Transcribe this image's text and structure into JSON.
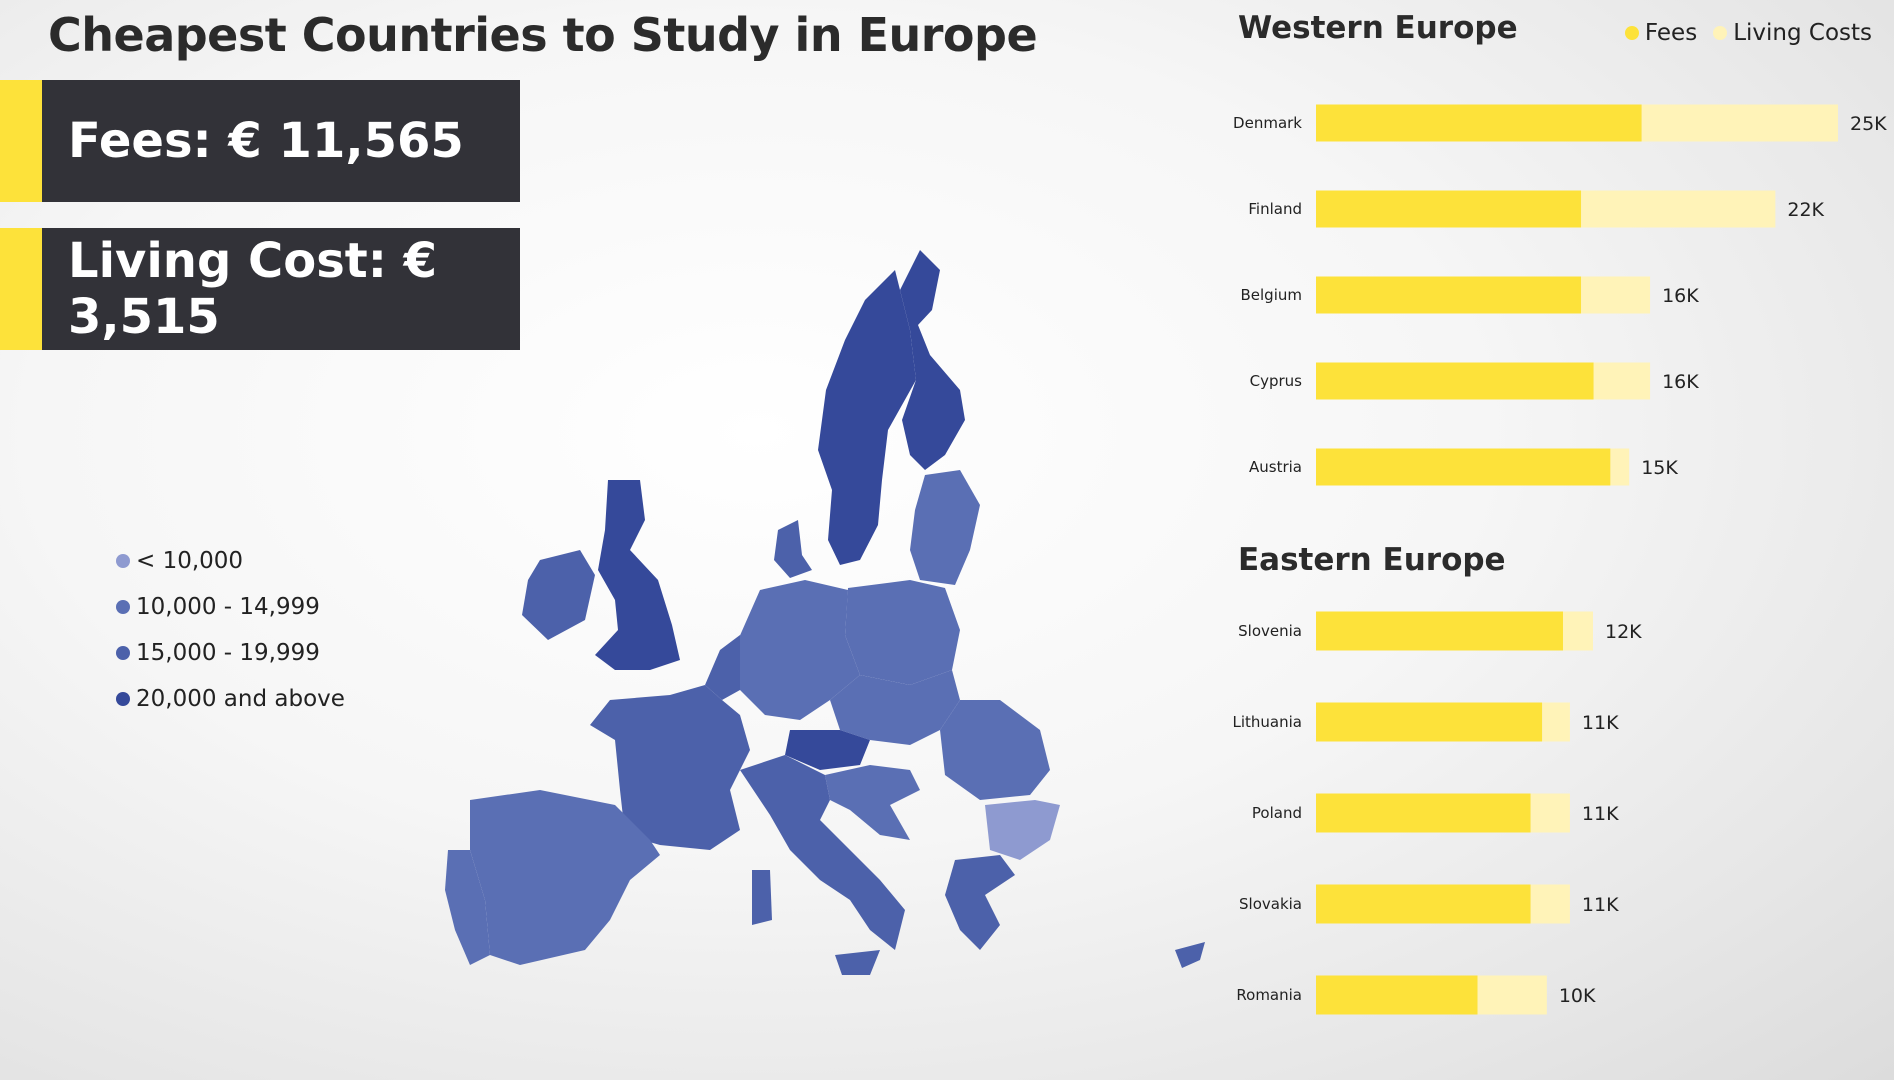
{
  "title": "Cheapest Countries to Study in Europe",
  "kpis": {
    "fees": "Fees: € 11,565",
    "living": "Living Cost: € 3,515"
  },
  "map_legend": [
    {
      "label": "< 10,000",
      "color": "#8e9ad0"
    },
    {
      "label": "10,000 - 14,999",
      "color": "#5a6fb4"
    },
    {
      "label": "15,000 - 19,999",
      "color": "#4c61aa"
    },
    {
      "label": "20,000 and above",
      "color": "#35499a"
    }
  ],
  "series_legend": {
    "fees": "Fees",
    "living": "Living Costs"
  },
  "colors": {
    "fees": "#fde23a",
    "living": "#fff3b8",
    "accent": "#fde23a",
    "dark_panel": "#323238"
  },
  "chart_data": [
    {
      "type": "bar",
      "orientation": "horizontal",
      "stacked": true,
      "title": "Western Europe",
      "categories": [
        "Denmark",
        "Finland",
        "Belgium",
        "Cyprus",
        "Austria"
      ],
      "series": [
        {
          "name": "Fees",
          "values": [
            15600,
            12700,
            12700,
            13300,
            14100
          ]
        },
        {
          "name": "Living Costs",
          "values": [
            9400,
            9300,
            3300,
            2700,
            900
          ]
        }
      ],
      "total_labels": [
        "25K",
        "22K",
        "16K",
        "16K",
        "15K"
      ],
      "xlim": [
        0,
        25000
      ]
    },
    {
      "type": "bar",
      "orientation": "horizontal",
      "stacked": true,
      "title": "Eastern Europe",
      "categories": [
        "Slovenia",
        "Lithuania",
        "Poland",
        "Slovakia",
        "Romania"
      ],
      "series": [
        {
          "name": "Fees",
          "values": [
            10700,
            9800,
            9300,
            9300,
            7000
          ]
        },
        {
          "name": "Living Costs",
          "values": [
            1300,
            1200,
            1700,
            1700,
            3000
          ]
        }
      ],
      "total_labels": [
        "12K",
        "11K",
        "11K",
        "11K",
        "10K"
      ],
      "xlim": [
        0,
        12000
      ]
    }
  ]
}
